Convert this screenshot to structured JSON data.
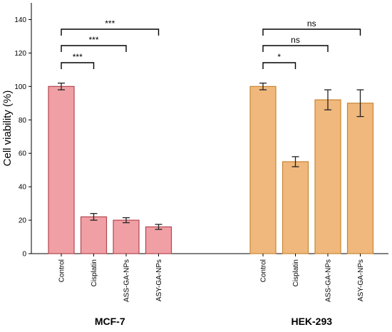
{
  "chart_data": {
    "type": "bar",
    "ylabel": "Cell viability (%)",
    "ylim": [
      0,
      150
    ],
    "yticks": [
      0,
      20,
      40,
      60,
      80,
      100,
      120,
      140
    ],
    "categories": [
      "Control",
      "Cisplatin",
      "ASS-GA-NPs",
      "ASY-GA-NPs"
    ],
    "groups": [
      {
        "name": "MCF-7",
        "color": "#f0a0a4",
        "edge_color": "#b5434f",
        "values": [
          100,
          22,
          20,
          16
        ],
        "errors": [
          2,
          2,
          1.5,
          1.5
        ],
        "comparisons": [
          {
            "from": "Control",
            "to": "Cisplatin",
            "label": "***"
          },
          {
            "from": "Control",
            "to": "ASS-GA-NPs",
            "label": "***"
          },
          {
            "from": "Control",
            "to": "ASY-GA-NPs",
            "label": "***"
          }
        ]
      },
      {
        "name": "HEK-293",
        "color": "#f0b87c",
        "edge_color": "#c98530",
        "values": [
          100,
          55,
          92,
          90
        ],
        "errors": [
          2,
          3,
          6,
          8
        ],
        "comparisons": [
          {
            "from": "Control",
            "to": "Cisplatin",
            "label": "*"
          },
          {
            "from": "Control",
            "to": "ASS-GA-NPs",
            "label": "ns"
          },
          {
            "from": "Control",
            "to": "ASY-GA-NPs",
            "label": "ns"
          }
        ]
      }
    ]
  }
}
